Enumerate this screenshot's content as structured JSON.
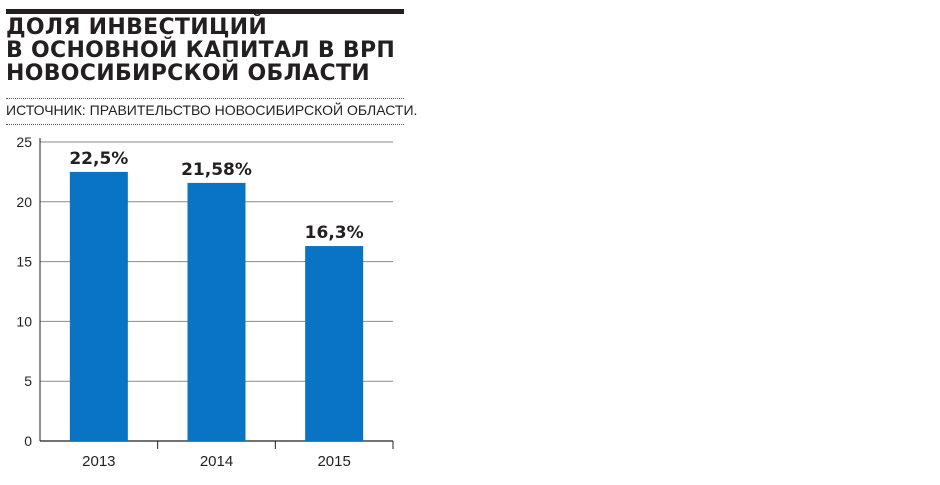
{
  "title_lines": [
    "ДОЛЯ ИНВЕСТИЦИЙ",
    "В ОСНОВНОЙ КАПИТАЛ В ВРП",
    "НОВОСИБИРСКОЙ ОБЛАСТИ"
  ],
  "source": "ИСТОЧНИК: ПРАВИТЕЛЬСТВО НОВОСИБИРСКОЙ ОБЛАСТИ.",
  "colors": {
    "bar": "#0a74c4",
    "text": "#231f20",
    "grid": "#8a8a8a"
  },
  "chart_data": {
    "type": "bar",
    "title": "ДОЛЯ ИНВЕСТИЦИЙ В ОСНОВНОЙ КАПИТАЛ В ВРП НОВОСИБИРСКОЙ ОБЛАСТИ",
    "categories": [
      "2013",
      "2014",
      "2015"
    ],
    "values": [
      22.5,
      21.58,
      16.3
    ],
    "data_labels": [
      "22,5%",
      "21,58%",
      "16,3%"
    ],
    "yticks": [
      0,
      5,
      10,
      15,
      20,
      25
    ],
    "ylim": [
      0,
      25
    ],
    "xlabel": "",
    "ylabel": "",
    "grid": true,
    "legend": "none"
  }
}
